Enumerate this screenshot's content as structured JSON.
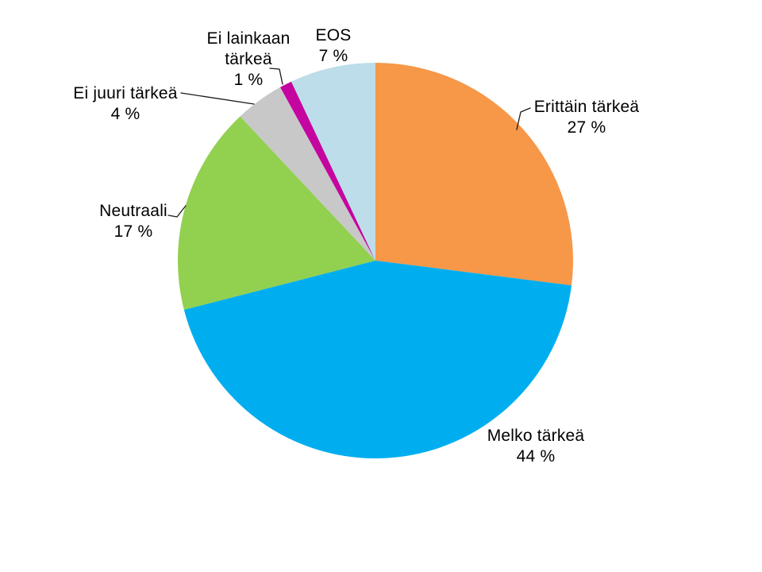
{
  "chart_data": {
    "type": "pie",
    "title": "",
    "direction": "clockwise",
    "start_angle_deg": 0,
    "legend": "none",
    "label_style": "outside labels with percent, leader lines on small slices",
    "background_color": "#ffffff",
    "slices": [
      {
        "label": "Erittäin tärkeä",
        "value": 27,
        "pct_label": "27 %",
        "color": "#F79748"
      },
      {
        "label": "Melko tärkeä",
        "value": 44,
        "pct_label": "44 %",
        "color": "#00AEEF"
      },
      {
        "label": "Neutraali",
        "value": 17,
        "pct_label": "17 %",
        "color": "#92D050"
      },
      {
        "label": "Ei juuri tärkeä",
        "value": 4,
        "pct_label": "4 %",
        "color": "#C8C8C8"
      },
      {
        "label": "Ei lainkaan tärkeä",
        "value": 1,
        "pct_label": "1 %",
        "color": "#C4059F"
      },
      {
        "label": "EOS",
        "value": 7,
        "pct_label": "7 %",
        "color": "#BCDDE9"
      }
    ]
  }
}
